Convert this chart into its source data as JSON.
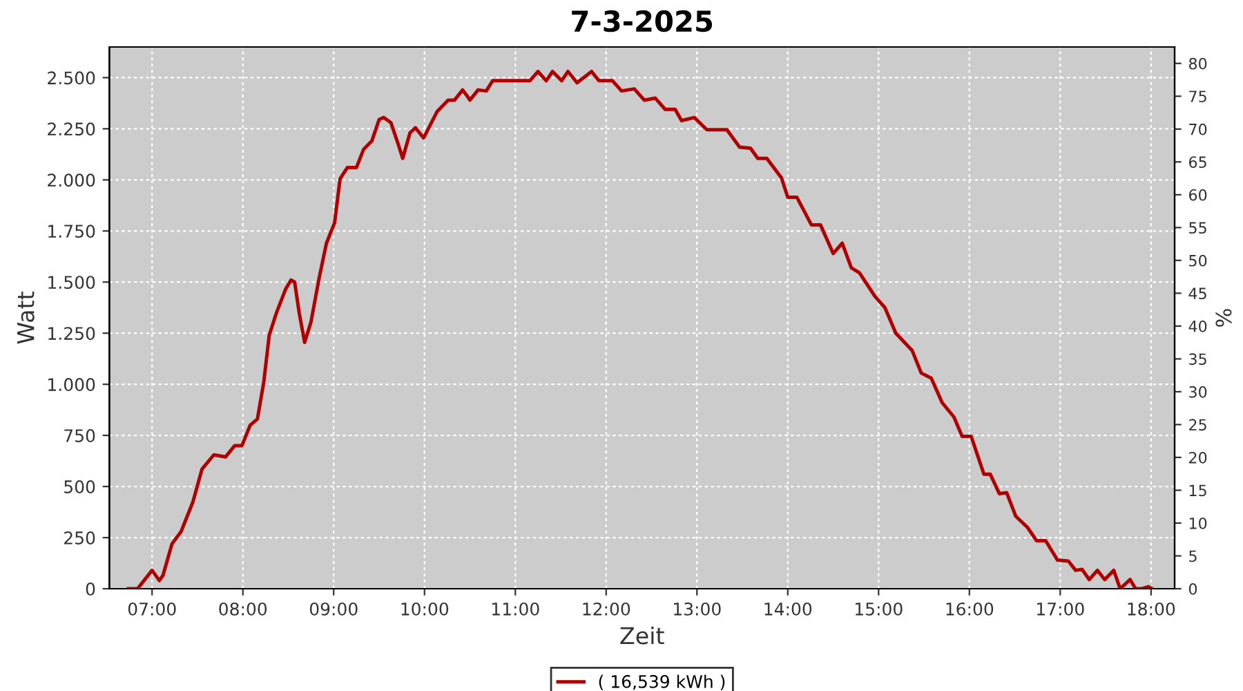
{
  "chart_data": {
    "type": "line",
    "title": "7-3-2025",
    "xlabel": "Zeit",
    "ylabel": "Watt",
    "y2label": "%",
    "series": [
      {
        "name": "( 16,539 kWh )",
        "color": "#b00000",
        "x": [
          6.74,
          6.84,
          7.0,
          7.08,
          7.12,
          7.22,
          7.32,
          7.45,
          7.55,
          7.68,
          7.81,
          7.91,
          7.99,
          8.08,
          8.16,
          8.23,
          8.29,
          8.37,
          8.47,
          8.53,
          8.57,
          8.62,
          8.68,
          8.75,
          8.84,
          8.92,
          9.01,
          9.07,
          9.15,
          9.25,
          9.33,
          9.42,
          9.5,
          9.55,
          9.63,
          9.71,
          9.76,
          9.84,
          9.9,
          9.99,
          10.14,
          10.26,
          10.33,
          10.42,
          10.47,
          10.5,
          10.59,
          10.68,
          10.75,
          11.16,
          11.25,
          11.34,
          11.41,
          11.51,
          11.58,
          11.68,
          11.84,
          11.92,
          12.07,
          12.17,
          12.31,
          12.42,
          12.54,
          12.65,
          12.76,
          12.83,
          12.97,
          13.11,
          13.33,
          13.47,
          13.59,
          13.67,
          13.77,
          13.93,
          14.0,
          14.1,
          14.26,
          14.36,
          14.5,
          14.6,
          14.7,
          14.79,
          14.96,
          15.07,
          15.19,
          15.37,
          15.47,
          15.58,
          15.7,
          15.83,
          15.92,
          16.02,
          16.16,
          16.23,
          16.33,
          16.41,
          16.51,
          16.64,
          16.74,
          16.84,
          16.97,
          17.09,
          17.17,
          17.24,
          17.32,
          17.41,
          17.49,
          17.59,
          17.66,
          17.77,
          17.83,
          17.9,
          17.97,
          18.01
        ],
        "values": [
          0,
          0,
          90,
          40,
          65,
          220,
          280,
          425,
          585,
          655,
          645,
          700,
          700,
          800,
          830,
          1010,
          1240,
          1350,
          1465,
          1510,
          1500,
          1350,
          1205,
          1305,
          1520,
          1690,
          1790,
          2005,
          2060,
          2060,
          2150,
          2190,
          2295,
          2305,
          2280,
          2175,
          2105,
          2230,
          2255,
          2205,
          2335,
          2390,
          2390,
          2440,
          2410,
          2390,
          2440,
          2435,
          2485,
          2485,
          2530,
          2485,
          2530,
          2485,
          2530,
          2475,
          2530,
          2485,
          2485,
          2435,
          2445,
          2390,
          2400,
          2345,
          2345,
          2290,
          2305,
          2245,
          2245,
          2160,
          2155,
          2105,
          2105,
          2010,
          1915,
          1915,
          1780,
          1780,
          1640,
          1690,
          1570,
          1545,
          1430,
          1375,
          1250,
          1165,
          1055,
          1030,
          910,
          840,
          745,
          745,
          560,
          560,
          465,
          470,
          355,
          300,
          235,
          235,
          140,
          135,
          90,
          95,
          45,
          90,
          45,
          90,
          0,
          45,
          0,
          0,
          10,
          0
        ]
      }
    ],
    "xlim": [
      6.53,
      18.26
    ],
    "xticks": [
      {
        "value": 7,
        "label": "07:00"
      },
      {
        "value": 8,
        "label": "08:00"
      },
      {
        "value": 9,
        "label": "09:00"
      },
      {
        "value": 10,
        "label": "10:00"
      },
      {
        "value": 11,
        "label": "11:00"
      },
      {
        "value": 12,
        "label": "12:00"
      },
      {
        "value": 13,
        "label": "13:00"
      },
      {
        "value": 14,
        "label": "14:00"
      },
      {
        "value": 15,
        "label": "15:00"
      },
      {
        "value": 16,
        "label": "16:00"
      },
      {
        "value": 17,
        "label": "17:00"
      },
      {
        "value": 18,
        "label": "18:00"
      }
    ],
    "ylim": [
      0,
      2650
    ],
    "yticks": [
      0,
      250,
      500,
      750,
      {
        "value": 1000,
        "label": "1.000"
      },
      {
        "value": 1250,
        "label": "1.250"
      },
      {
        "value": 1500,
        "label": "1.500"
      },
      {
        "value": 1750,
        "label": "1.750"
      },
      {
        "value": 2000,
        "label": "2.000"
      },
      {
        "value": 2250,
        "label": "2.250"
      },
      {
        "value": 2500,
        "label": "2.500"
      }
    ],
    "y2lim": [
      0,
      82.5
    ],
    "y2ticks": [
      0,
      5,
      10,
      15,
      20,
      25,
      30,
      35,
      40,
      45,
      50,
      55,
      60,
      65,
      70,
      75,
      80
    ],
    "grid": true,
    "legend": "bottom",
    "marker": "none",
    "line_style": "solid"
  }
}
